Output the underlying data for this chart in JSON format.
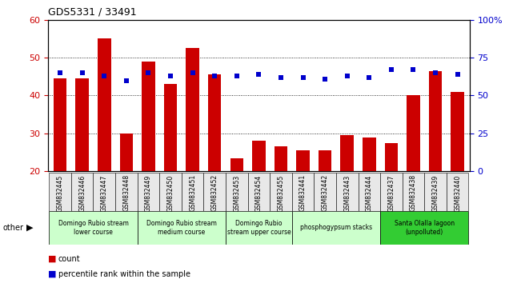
{
  "title": "GDS5331 / 33491",
  "samples": [
    "GSM832445",
    "GSM832446",
    "GSM832447",
    "GSM832448",
    "GSM832449",
    "GSM832450",
    "GSM832451",
    "GSM832452",
    "GSM832453",
    "GSM832454",
    "GSM832455",
    "GSM832441",
    "GSM832442",
    "GSM832443",
    "GSM832444",
    "GSM832437",
    "GSM832438",
    "GSM832439",
    "GSM832440"
  ],
  "counts": [
    44.5,
    44.5,
    55.0,
    30.0,
    49.0,
    43.0,
    52.5,
    45.5,
    23.5,
    28.0,
    26.5,
    25.5,
    25.5,
    29.5,
    29.0,
    27.5,
    40.0,
    46.5,
    41.0
  ],
  "percentiles": [
    65,
    65,
    63,
    60,
    65,
    63,
    65,
    63,
    63,
    64,
    62,
    62,
    61,
    63,
    62,
    67,
    67,
    65,
    64
  ],
  "bar_color": "#cc0000",
  "dot_color": "#0000cc",
  "ylim_left": [
    20,
    60
  ],
  "ylim_right": [
    0,
    100
  ],
  "yticks_left": [
    20,
    30,
    40,
    50,
    60
  ],
  "yticks_right": [
    0,
    25,
    50,
    75,
    100
  ],
  "groups": [
    {
      "label": "Domingo Rubio stream\nlower course",
      "color": "#ccffcc",
      "start": 0,
      "end": 4
    },
    {
      "label": "Domingo Rubio stream\nmedium course",
      "color": "#ccffcc",
      "start": 4,
      "end": 8
    },
    {
      "label": "Domingo Rubio\nstream upper course",
      "color": "#ccffcc",
      "start": 8,
      "end": 11
    },
    {
      "label": "phosphogypsum stacks",
      "color": "#ccffcc",
      "start": 11,
      "end": 15
    },
    {
      "label": "Santa Olalla lagoon\n(unpolluted)",
      "color": "#33cc33",
      "start": 15,
      "end": 19
    }
  ],
  "bar_bg_color": "#e8e8e8",
  "legend_count_color": "#cc0000",
  "legend_dot_color": "#0000cc"
}
